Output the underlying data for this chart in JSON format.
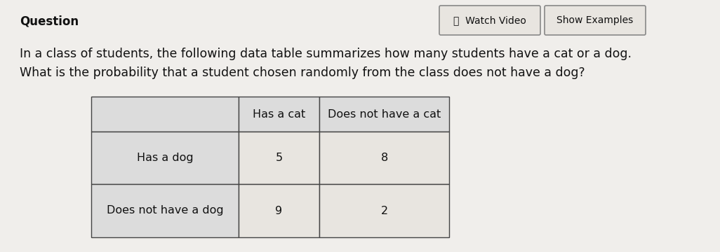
{
  "background_color": "#d8d8d8",
  "page_bg": "#f0eeeb",
  "title_text": "Question",
  "title_fontsize": 12,
  "body_text_line1": "In a class of students, the following data table summarizes how many students have a cat or a dog.",
  "body_text_line2": "What is the probability that a student chosen randomly from the class does not have a dog?",
  "body_fontsize": 12.5,
  "watch_video_text": "ⓘ  Watch Video",
  "show_examples_text": "Show Examples",
  "button_fontsize": 10,
  "table_col_headers": [
    "Has a cat",
    "Does not have a cat"
  ],
  "table_row_headers": [
    "Has a dog",
    "Does not have a dog"
  ],
  "table_data": [
    [
      5,
      8
    ],
    [
      9,
      2
    ]
  ],
  "table_fontsize": 11.5,
  "table_header_bg": "#dcdcdc",
  "table_cell_bg": "#e8e5e0",
  "table_border_color": "#444444",
  "text_color": "#111111",
  "button_bg": "#e8e5e0",
  "button_border": "#888888"
}
